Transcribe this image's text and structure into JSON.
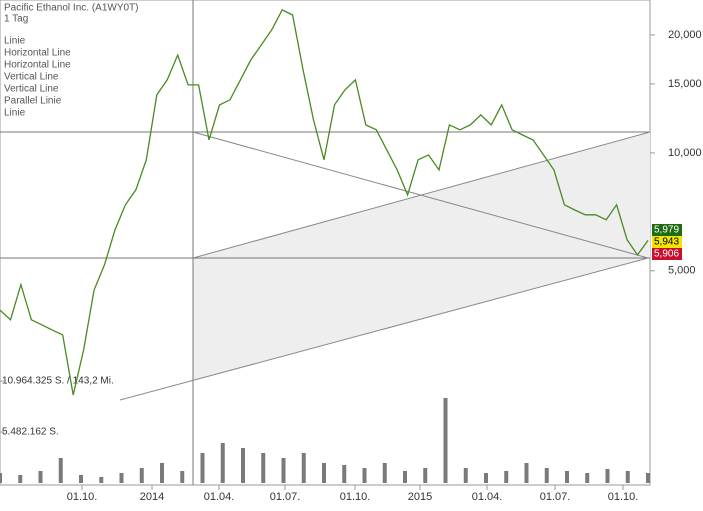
{
  "chart_data": {
    "type": "line",
    "title": "Pacific Ethanol Inc. (A1WY0T)",
    "subtitle": "1 Tag",
    "annotations": [
      "Linie",
      "Horizontal Line",
      "Horizontal Line",
      "Vertical Line",
      "Vertical Line",
      "Parallel Linie",
      "Linie"
    ],
    "log_scale": true,
    "ylim": [
      1.42,
      24.56
    ],
    "yticks": [
      {
        "value": 20,
        "label": "20,000"
      },
      {
        "value": 15,
        "label": "15,000"
      },
      {
        "value": 10,
        "label": "10,000"
      },
      {
        "value": 5,
        "label": "5,000"
      }
    ],
    "x_axis_labels": [
      "01.10.",
      "2014",
      "01.04.",
      "01.07.",
      "01.10.",
      "2015",
      "01.04.",
      "01.07.",
      "01.10."
    ],
    "series": [
      {
        "name": "Pacific Ethanol Inc.",
        "color": "#4a8a22",
        "values": [
          3.97,
          3.75,
          4.61,
          3.75,
          3.64,
          3.53,
          3.43,
          2.41,
          3.14,
          4.47,
          5.18,
          6.36,
          7.37,
          8.05,
          9.6,
          14.06,
          15.36,
          17.78,
          14.91,
          14.91,
          10.79,
          13.26,
          13.65,
          15.36,
          17.27,
          18.86,
          20.6,
          23.17,
          22.49,
          16.28,
          12.14,
          9.6,
          13.26,
          14.48,
          15.36,
          11.79,
          11.45,
          10.18,
          9.05,
          7.81,
          9.6,
          9.88,
          9.05,
          11.79,
          11.45,
          11.79,
          12.5,
          11.79,
          13.26,
          11.45,
          11.11,
          10.79,
          9.88,
          9.05,
          7.37,
          7.15,
          6.95,
          6.95,
          6.75,
          7.37,
          6.0,
          5.49,
          5.979
        ]
      }
    ],
    "price_tags": [
      {
        "value": 5.979,
        "label": "5,979",
        "color": "#1f6b12"
      },
      {
        "value": 5.943,
        "label": "5,943",
        "color": "#f2e600"
      },
      {
        "value": 5.906,
        "label": "5,906",
        "color": "#c8102e"
      }
    ],
    "volume": {
      "color": "#7a7a7a",
      "ylim": [
        0,
        10964325
      ],
      "yticks": [
        {
          "value": 10964325,
          "label": "10.964.325 S. / 143,2 Mi."
        },
        {
          "value": 5482162,
          "label": "5.482.162 S."
        }
      ],
      "values": [
        1075000,
        860000,
        1290000,
        2687500,
        860000,
        645000,
        1075000,
        1612500,
        2150000,
        1290000,
        3225000,
        4300000,
        3762500,
        3225000,
        2687500,
        3225000,
        2150000,
        1935000,
        1612500,
        2150000,
        1290000,
        1612500,
        9137500,
        1612500,
        1075000,
        1290000,
        2150000,
        1612500,
        1290000,
        1075000,
        1505000,
        1290000,
        1075000
      ]
    }
  }
}
